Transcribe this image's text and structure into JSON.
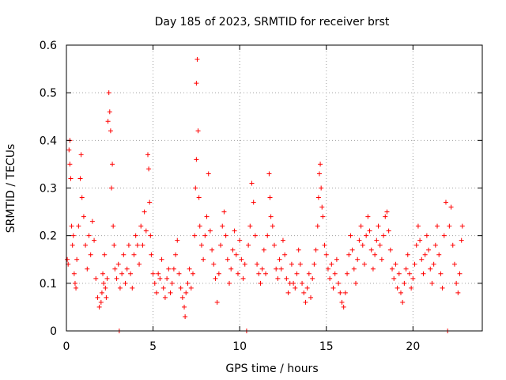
{
  "chart_data": {
    "type": "scatter",
    "title": "Day 185 of 2023, SRMTID for receiver brst",
    "xlabel": "GPS time / hours",
    "ylabel": "SRMTID / TECUs",
    "xlim": [
      0,
      24
    ],
    "ylim": [
      0,
      0.6
    ],
    "xticks": [
      0,
      5,
      10,
      15,
      20
    ],
    "yticks": [
      0,
      0.1,
      0.2,
      0.3,
      0.4,
      0.5,
      0.6
    ],
    "xtick_labels": [
      "0",
      "5",
      "10",
      "15",
      "20"
    ],
    "ytick_labels": [
      "0",
      "0.1",
      "0.2",
      "0.3",
      "0.4",
      "0.5",
      "0.6"
    ],
    "grid": true,
    "marker": "+",
    "color": "#ff0000",
    "series": [
      {
        "name": "brst",
        "points": [
          [
            0.05,
            0.15
          ],
          [
            0.1,
            0.14
          ],
          [
            0.15,
            0.38
          ],
          [
            0.2,
            0.35
          ],
          [
            0.2,
            0.4
          ],
          [
            0.25,
            0.32
          ],
          [
            0.3,
            0.22
          ],
          [
            0.35,
            0.18
          ],
          [
            0.4,
            0.2
          ],
          [
            0.45,
            0.12
          ],
          [
            0.5,
            0.1
          ],
          [
            0.55,
            0.09
          ],
          [
            0.6,
            0.15
          ],
          [
            0.7,
            0.22
          ],
          [
            0.8,
            0.32
          ],
          [
            0.85,
            0.37
          ],
          [
            0.9,
            0.28
          ],
          [
            1.0,
            0.24
          ],
          [
            1.1,
            0.18
          ],
          [
            1.2,
            0.13
          ],
          [
            1.3,
            0.2
          ],
          [
            1.4,
            0.16
          ],
          [
            1.5,
            0.23
          ],
          [
            1.6,
            0.19
          ],
          [
            1.7,
            0.11
          ],
          [
            1.8,
            0.07
          ],
          [
            1.9,
            0.05
          ],
          [
            2.0,
            0.06
          ],
          [
            2.05,
            0.08
          ],
          [
            2.1,
            0.12
          ],
          [
            2.15,
            0.1
          ],
          [
            2.2,
            0.16
          ],
          [
            2.25,
            0.09
          ],
          [
            2.3,
            0.07
          ],
          [
            2.35,
            0.11
          ],
          [
            2.4,
            0.44
          ],
          [
            2.45,
            0.5
          ],
          [
            2.5,
            0.46
          ],
          [
            2.55,
            0.42
          ],
          [
            2.6,
            0.3
          ],
          [
            2.65,
            0.35
          ],
          [
            2.7,
            0.22
          ],
          [
            2.75,
            0.18
          ],
          [
            2.8,
            0.13
          ],
          [
            2.9,
            0.11
          ],
          [
            3.0,
            0.14
          ],
          [
            3.05,
            0.0
          ],
          [
            3.1,
            0.09
          ],
          [
            3.2,
            0.12
          ],
          [
            3.3,
            0.16
          ],
          [
            3.4,
            0.1
          ],
          [
            3.5,
            0.13
          ],
          [
            3.6,
            0.18
          ],
          [
            3.7,
            0.12
          ],
          [
            3.8,
            0.09
          ],
          [
            3.9,
            0.16
          ],
          [
            4.0,
            0.2
          ],
          [
            4.1,
            0.18
          ],
          [
            4.2,
            0.14
          ],
          [
            4.3,
            0.22
          ],
          [
            4.4,
            0.18
          ],
          [
            4.5,
            0.25
          ],
          [
            4.6,
            0.21
          ],
          [
            4.7,
            0.37
          ],
          [
            4.75,
            0.34
          ],
          [
            4.8,
            0.27
          ],
          [
            4.85,
            0.2
          ],
          [
            4.9,
            0.16
          ],
          [
            5.0,
            0.12
          ],
          [
            5.1,
            0.1
          ],
          [
            5.2,
            0.08
          ],
          [
            5.3,
            0.12
          ],
          [
            5.4,
            0.11
          ],
          [
            5.5,
            0.15
          ],
          [
            5.6,
            0.09
          ],
          [
            5.7,
            0.07
          ],
          [
            5.8,
            0.11
          ],
          [
            5.9,
            0.13
          ],
          [
            6.0,
            0.08
          ],
          [
            6.1,
            0.1
          ],
          [
            6.2,
            0.13
          ],
          [
            6.3,
            0.16
          ],
          [
            6.4,
            0.19
          ],
          [
            6.5,
            0.12
          ],
          [
            6.6,
            0.09
          ],
          [
            6.7,
            0.07
          ],
          [
            6.8,
            0.05
          ],
          [
            6.85,
            0.03
          ],
          [
            6.9,
            0.08
          ],
          [
            7.0,
            0.1
          ],
          [
            7.1,
            0.13
          ],
          [
            7.2,
            0.09
          ],
          [
            7.3,
            0.12
          ],
          [
            7.4,
            0.2
          ],
          [
            7.45,
            0.3
          ],
          [
            7.5,
            0.36
          ],
          [
            7.5,
            0.52
          ],
          [
            7.55,
            0.57
          ],
          [
            7.6,
            0.42
          ],
          [
            7.65,
            0.28
          ],
          [
            7.7,
            0.22
          ],
          [
            7.8,
            0.18
          ],
          [
            7.9,
            0.15
          ],
          [
            8.0,
            0.2
          ],
          [
            8.1,
            0.24
          ],
          [
            8.2,
            0.33
          ],
          [
            8.3,
            0.21
          ],
          [
            8.4,
            0.17
          ],
          [
            8.5,
            0.14
          ],
          [
            8.6,
            0.11
          ],
          [
            8.7,
            0.06
          ],
          [
            8.8,
            0.12
          ],
          [
            8.9,
            0.18
          ],
          [
            9.0,
            0.22
          ],
          [
            9.1,
            0.25
          ],
          [
            9.2,
            0.2
          ],
          [
            9.3,
            0.15
          ],
          [
            9.4,
            0.1
          ],
          [
            9.5,
            0.13
          ],
          [
            9.6,
            0.17
          ],
          [
            9.7,
            0.21
          ],
          [
            9.8,
            0.16
          ],
          [
            9.9,
            0.12
          ],
          [
            10.0,
            0.19
          ],
          [
            10.1,
            0.15
          ],
          [
            10.2,
            0.11
          ],
          [
            10.3,
            0.14
          ],
          [
            10.4,
            0.0
          ],
          [
            10.5,
            0.18
          ],
          [
            10.6,
            0.22
          ],
          [
            10.7,
            0.31
          ],
          [
            10.8,
            0.27
          ],
          [
            10.9,
            0.2
          ],
          [
            11.0,
            0.14
          ],
          [
            11.1,
            0.12
          ],
          [
            11.2,
            0.1
          ],
          [
            11.3,
            0.13
          ],
          [
            11.4,
            0.17
          ],
          [
            11.5,
            0.12
          ],
          [
            11.6,
            0.2
          ],
          [
            11.7,
            0.33
          ],
          [
            11.75,
            0.28
          ],
          [
            11.8,
            0.24
          ],
          [
            11.9,
            0.22
          ],
          [
            12.0,
            0.18
          ],
          [
            12.1,
            0.13
          ],
          [
            12.2,
            0.11
          ],
          [
            12.3,
            0.15
          ],
          [
            12.4,
            0.13
          ],
          [
            12.5,
            0.19
          ],
          [
            12.6,
            0.16
          ],
          [
            12.7,
            0.11
          ],
          [
            12.8,
            0.08
          ],
          [
            12.9,
            0.1
          ],
          [
            13.0,
            0.14
          ],
          [
            13.1,
            0.1
          ],
          [
            13.2,
            0.09
          ],
          [
            13.3,
            0.12
          ],
          [
            13.4,
            0.17
          ],
          [
            13.5,
            0.14
          ],
          [
            13.6,
            0.1
          ],
          [
            13.7,
            0.08
          ],
          [
            13.8,
            0.06
          ],
          [
            13.9,
            0.09
          ],
          [
            14.0,
            0.12
          ],
          [
            14.1,
            0.07
          ],
          [
            14.2,
            0.11
          ],
          [
            14.3,
            0.14
          ],
          [
            14.4,
            0.17
          ],
          [
            14.5,
            0.22
          ],
          [
            14.55,
            0.28
          ],
          [
            14.6,
            0.33
          ],
          [
            14.65,
            0.35
          ],
          [
            14.7,
            0.3
          ],
          [
            14.75,
            0.26
          ],
          [
            14.8,
            0.24
          ],
          [
            14.9,
            0.18
          ],
          [
            15.0,
            0.16
          ],
          [
            15.1,
            0.13
          ],
          [
            15.2,
            0.11
          ],
          [
            15.3,
            0.14
          ],
          [
            15.4,
            0.09
          ],
          [
            15.5,
            0.12
          ],
          [
            15.6,
            0.15
          ],
          [
            15.7,
            0.1
          ],
          [
            15.8,
            0.08
          ],
          [
            15.9,
            0.06
          ],
          [
            16.0,
            0.05
          ],
          [
            16.1,
            0.08
          ],
          [
            16.2,
            0.12
          ],
          [
            16.3,
            0.16
          ],
          [
            16.4,
            0.2
          ],
          [
            16.5,
            0.17
          ],
          [
            16.6,
            0.13
          ],
          [
            16.7,
            0.1
          ],
          [
            16.8,
            0.15
          ],
          [
            16.9,
            0.19
          ],
          [
            17.0,
            0.22
          ],
          [
            17.1,
            0.18
          ],
          [
            17.2,
            0.14
          ],
          [
            17.3,
            0.2
          ],
          [
            17.4,
            0.24
          ],
          [
            17.5,
            0.21
          ],
          [
            17.6,
            0.17
          ],
          [
            17.7,
            0.13
          ],
          [
            17.8,
            0.16
          ],
          [
            17.9,
            0.19
          ],
          [
            18.0,
            0.22
          ],
          [
            18.1,
            0.18
          ],
          [
            18.2,
            0.15
          ],
          [
            18.3,
            0.2
          ],
          [
            18.4,
            0.24
          ],
          [
            18.5,
            0.25
          ],
          [
            18.6,
            0.21
          ],
          [
            18.7,
            0.17
          ],
          [
            18.8,
            0.13
          ],
          [
            18.9,
            0.11
          ],
          [
            19.0,
            0.14
          ],
          [
            19.1,
            0.09
          ],
          [
            19.2,
            0.12
          ],
          [
            19.3,
            0.08
          ],
          [
            19.4,
            0.06
          ],
          [
            19.5,
            0.1
          ],
          [
            19.6,
            0.13
          ],
          [
            19.7,
            0.16
          ],
          [
            19.8,
            0.12
          ],
          [
            19.9,
            0.09
          ],
          [
            20.0,
            0.11
          ],
          [
            20.1,
            0.14
          ],
          [
            20.2,
            0.18
          ],
          [
            20.3,
            0.22
          ],
          [
            20.4,
            0.19
          ],
          [
            20.5,
            0.15
          ],
          [
            20.6,
            0.12
          ],
          [
            20.7,
            0.16
          ],
          [
            20.8,
            0.2
          ],
          [
            20.9,
            0.17
          ],
          [
            21.0,
            0.13
          ],
          [
            21.1,
            0.1
          ],
          [
            21.2,
            0.14
          ],
          [
            21.3,
            0.18
          ],
          [
            21.4,
            0.22
          ],
          [
            21.5,
            0.16
          ],
          [
            21.6,
            0.12
          ],
          [
            21.7,
            0.09
          ],
          [
            21.8,
            0.2
          ],
          [
            21.9,
            0.27
          ],
          [
            22.0,
            0.0
          ],
          [
            22.1,
            0.22
          ],
          [
            22.2,
            0.26
          ],
          [
            22.3,
            0.18
          ],
          [
            22.4,
            0.14
          ],
          [
            22.5,
            0.1
          ],
          [
            22.6,
            0.08
          ],
          [
            22.7,
            0.12
          ],
          [
            22.8,
            0.19
          ],
          [
            22.85,
            0.22
          ]
        ]
      }
    ]
  }
}
